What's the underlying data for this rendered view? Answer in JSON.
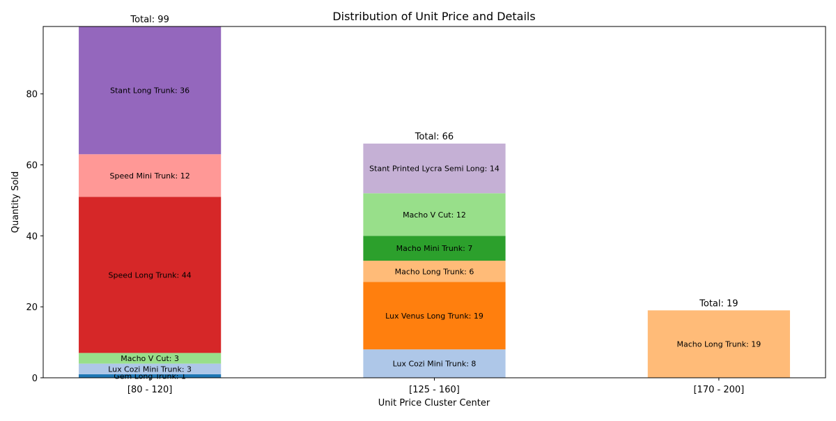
{
  "chart_data": {
    "type": "bar",
    "stacked": true,
    "title": "Distribution of Unit Price and Details",
    "xlabel": "Unit Price Cluster Center",
    "ylabel": "Quantity Sold",
    "categories": [
      "[80 - 120]",
      "[125 - 160]",
      "[170 - 200]"
    ],
    "ylim": [
      0,
      99
    ],
    "yticks": [
      0,
      20,
      40,
      60,
      80
    ],
    "grid": false,
    "total_prefix": "Total: ",
    "stacks": [
      {
        "category": "[80 - 120]",
        "total": 99,
        "segments": [
          {
            "label": "Gem Long Trunk",
            "value": 1,
            "color": "#1f77b4"
          },
          {
            "label": "Lux Cozi Mini Trunk",
            "value": 3,
            "color": "#aec7e8"
          },
          {
            "label": "Macho V Cut",
            "value": 3,
            "color": "#98df8a"
          },
          {
            "label": "Speed Long Trunk",
            "value": 44,
            "color": "#d62728"
          },
          {
            "label": "Speed Mini Trunk",
            "value": 12,
            "color": "#ff9896"
          },
          {
            "label": "Stant Long Trunk",
            "value": 36,
            "color": "#9467bd"
          }
        ]
      },
      {
        "category": "[125 - 160]",
        "total": 66,
        "segments": [
          {
            "label": "Lux Cozi Mini Trunk",
            "value": 8,
            "color": "#aec7e8"
          },
          {
            "label": "Lux Venus Long Trunk",
            "value": 19,
            "color": "#ff7f0e"
          },
          {
            "label": "Macho Long Trunk",
            "value": 6,
            "color": "#ffbb78"
          },
          {
            "label": "Macho Mini Trunk",
            "value": 7,
            "color": "#2ca02c"
          },
          {
            "label": "Macho V Cut",
            "value": 12,
            "color": "#98df8a"
          },
          {
            "label": "Stant Printed Lycra Semi Long",
            "value": 14,
            "color": "#c5b0d5"
          }
        ]
      },
      {
        "category": "[170 - 200]",
        "total": 19,
        "segments": [
          {
            "label": "Macho Long Trunk",
            "value": 19,
            "color": "#ffbb78"
          }
        ]
      }
    ]
  }
}
